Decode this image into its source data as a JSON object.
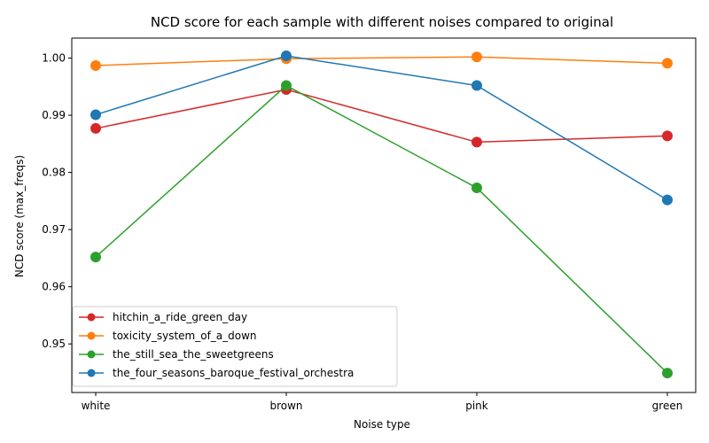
{
  "chart_data": {
    "type": "line",
    "title": "NCD score for each sample with different noises compared to original",
    "xlabel": "Noise type",
    "ylabel": "NCD score (max_freqs)",
    "categories": [
      "white",
      "brown",
      "pink",
      "green"
    ],
    "ylim": [
      0.9415,
      1.0035
    ],
    "yticks": [
      "0.95",
      "0.96",
      "0.97",
      "0.98",
      "0.99",
      "1.00"
    ],
    "grid": false,
    "legend_position": "lower-left",
    "series": [
      {
        "name": "hitchin_a_ride_green_day",
        "color": "#d62728",
        "values": [
          0.9877,
          0.9945,
          0.9853,
          0.9864
        ]
      },
      {
        "name": "toxicity_system_of_a_down",
        "color": "#ff7f0e",
        "values": [
          0.9987,
          0.9999,
          1.0002,
          0.9991
        ]
      },
      {
        "name": "the_still_sea_the_sweetgreens",
        "color": "#2ca02c",
        "values": [
          0.9652,
          0.9952,
          0.9773,
          0.9449
        ]
      },
      {
        "name": "the_four_seasons_baroque_festival_orchestra",
        "color": "#1f77b4",
        "values": [
          0.9901,
          1.0004,
          0.9952,
          0.9752
        ]
      }
    ]
  }
}
